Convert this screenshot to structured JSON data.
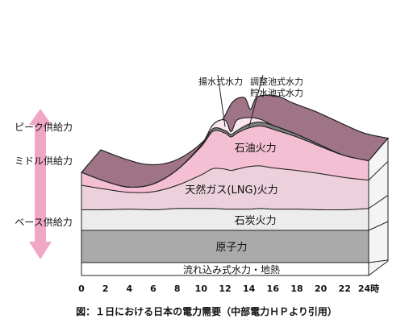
{
  "chart_data": {
    "type": "area",
    "title": "",
    "xlabel": "",
    "ylabel": "",
    "x_ticks": [
      "0",
      "2",
      "4",
      "6",
      "8",
      "10",
      "12",
      "14",
      "16",
      "18",
      "20",
      "22",
      "24時"
    ],
    "x": [
      0,
      2,
      4,
      6,
      8,
      10,
      11,
      12,
      12.5,
      13,
      14,
      15,
      16,
      18,
      20,
      22,
      24
    ],
    "layers": [
      {
        "key": "run_of_river",
        "name": "流れ込み式水力・地熱",
        "values": [
          20,
          20,
          20,
          20,
          20,
          20,
          20,
          20,
          20,
          20,
          20,
          20,
          20,
          20,
          20,
          20,
          20
        ]
      },
      {
        "key": "nuclear",
        "name": "原子力",
        "values": [
          50,
          50,
          50,
          50,
          50,
          50,
          50,
          50,
          50,
          50,
          50,
          50,
          50,
          50,
          50,
          50,
          50
        ]
      },
      {
        "key": "coal",
        "name": "石炭火力",
        "values": [
          32,
          32,
          33,
          32,
          34,
          34,
          34,
          33,
          33,
          33,
          33,
          34,
          33,
          33,
          32,
          32,
          34
        ]
      },
      {
        "key": "lng",
        "name": "天然ガス(LNG)火力",
        "values": [
          38,
          32,
          26,
          28,
          36,
          52,
          62,
          62,
          60,
          62,
          66,
          66,
          64,
          60,
          56,
          50,
          44
        ]
      },
      {
        "key": "oil",
        "name": "石油火力",
        "values": [
          20,
          12,
          8,
          12,
          24,
          44,
          58,
          56,
          52,
          56,
          60,
          62,
          60,
          52,
          42,
          34,
          30
        ]
      },
      {
        "key": "regulating",
        "name": "調整池式水力 貯水池式水力",
        "values": [
          0,
          0,
          0,
          0,
          0,
          2,
          4,
          4,
          4,
          4,
          6,
          6,
          6,
          4,
          2,
          0,
          0
        ]
      },
      {
        "key": "pumped",
        "name": "揚水式水力",
        "values": [
          0,
          0,
          0,
          0,
          0,
          0,
          6,
          16,
          4,
          16,
          10,
          4,
          0,
          0,
          0,
          0,
          0
        ]
      }
    ],
    "total_demand": [
      160,
      146,
      137,
      142,
      164,
      202,
      234,
      241,
      223,
      241,
      245,
      242,
      233,
      219,
      202,
      186,
      178
    ],
    "supply_bands": [
      "ピーク供給力",
      "ミドル供給力",
      "ベース供給力"
    ],
    "colors": {
      "run_of_river": "#ffffff",
      "nuclear": "#aaaaaa",
      "coal": "#ececec",
      "lng": "#ecd0dc",
      "oil": "#f5bfd3",
      "regulating": "#7d7d7d",
      "pumped": "#f9e6ee",
      "peak_band": "#9e7486",
      "supply_arrow": "#f0a6c4"
    }
  },
  "caption": "図：１日における日本の電力需要（中部電力ＨＰより引用）"
}
